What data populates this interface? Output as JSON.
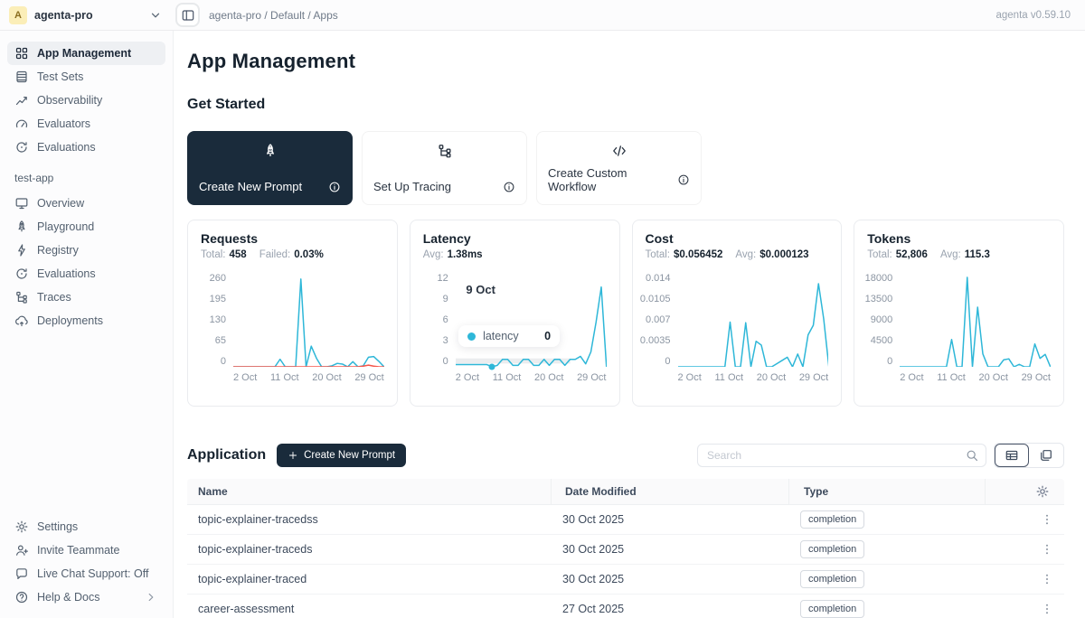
{
  "topbar": {
    "org": {
      "avatar_letter": "A",
      "name": "agenta-pro"
    },
    "breadcrumb": "agenta-pro / Default / Apps",
    "version": "agenta v0.59.10"
  },
  "sidebar": {
    "main_items": [
      {
        "label": "App Management",
        "icon": "grid-icon",
        "active": true
      },
      {
        "label": "Test Sets",
        "icon": "table-icon"
      },
      {
        "label": "Observability",
        "icon": "chart-icon"
      },
      {
        "label": "Evaluators",
        "icon": "gauge-icon"
      },
      {
        "label": "Evaluations",
        "icon": "refresh-icon"
      }
    ],
    "section_label": "test-app",
    "app_items": [
      {
        "label": "Overview",
        "icon": "monitor-icon"
      },
      {
        "label": "Playground",
        "icon": "rocket-icon"
      },
      {
        "label": "Registry",
        "icon": "lightning-icon"
      },
      {
        "label": "Evaluations",
        "icon": "refresh-icon"
      },
      {
        "label": "Traces",
        "icon": "trace-icon"
      },
      {
        "label": "Deployments",
        "icon": "cloud-icon"
      }
    ],
    "bottom_items": [
      {
        "label": "Settings",
        "icon": "gear-icon"
      },
      {
        "label": "Invite Teammate",
        "icon": "invite-icon"
      },
      {
        "label": "Live Chat Support: Off",
        "icon": "chat-icon"
      },
      {
        "label": "Help & Docs",
        "icon": "help-icon",
        "chevron": true
      }
    ]
  },
  "main": {
    "title": "App Management",
    "get_started": {
      "heading": "Get Started",
      "cards": [
        {
          "label": "Create New Prompt",
          "icon": "rocket-icon",
          "dark": true
        },
        {
          "label": "Set Up Tracing",
          "icon": "trace-icon"
        },
        {
          "label": "Create Custom Workflow",
          "icon": "code-icon"
        }
      ]
    },
    "application": {
      "heading": "Application",
      "create_button_label": "Create New Prompt",
      "search_placeholder": "Search",
      "table": {
        "columns": [
          "Name",
          "Date Modified",
          "Type"
        ],
        "rows": [
          {
            "name": "topic-explainer-tracedss",
            "date": "30 Oct 2025",
            "type": "completion"
          },
          {
            "name": "topic-explainer-traceds",
            "date": "30 Oct 2025",
            "type": "completion"
          },
          {
            "name": "topic-explainer-traced",
            "date": "30 Oct 2025",
            "type": "completion"
          },
          {
            "name": "career-assessment",
            "date": "27 Oct 2025",
            "type": "completion"
          }
        ]
      }
    }
  },
  "colors": {
    "accent_cyan": "#2eb7d8",
    "failed_red": "#f5554a",
    "dark_navy": "#1a2b3b"
  },
  "chart_data": [
    {
      "type": "line",
      "title": "Requests",
      "stats": [
        {
          "label": "Total:",
          "value": "458"
        },
        {
          "label": "Failed:",
          "value": "0.03%"
        }
      ],
      "yticks": [
        "260",
        "195",
        "130",
        "65",
        "0"
      ],
      "ylim": [
        0,
        273
      ],
      "xticks": [
        "2 Oct",
        "11 Oct",
        "20 Oct",
        "29 Oct"
      ],
      "x_days": "2 Oct to 31 Oct, daily",
      "series": [
        {
          "name": "requests",
          "color": "#2eb7d8",
          "values": [
            0,
            0,
            0,
            0,
            0,
            0,
            0,
            0,
            0,
            22,
            0,
            0,
            0,
            255,
            0,
            60,
            25,
            0,
            0,
            3,
            10,
            8,
            0,
            15,
            0,
            3,
            28,
            30,
            16,
            0
          ]
        },
        {
          "name": "failed",
          "color": "#f5554a",
          "values": [
            0,
            0,
            0,
            0,
            0,
            0,
            0,
            0,
            0,
            0,
            0,
            0,
            0,
            0,
            0,
            0,
            0,
            0,
            0,
            0,
            0,
            0,
            0,
            0,
            0,
            2,
            5,
            2,
            0,
            0
          ]
        }
      ]
    },
    {
      "type": "line",
      "title": "Latency",
      "stats": [
        {
          "label": "Avg:",
          "value": "1.38ms"
        }
      ],
      "yticks": [
        "12",
        "9",
        "6",
        "3",
        "0"
      ],
      "ylim": [
        0,
        12.6
      ],
      "xticks": [
        "2 Oct",
        "11 Oct",
        "20 Oct",
        "29 Oct"
      ],
      "x_days": "2 Oct to 31 Oct, daily",
      "band": true,
      "active_point": {
        "index": 7,
        "value": 0
      },
      "tooltip": {
        "date": "9 Oct",
        "series": "latency",
        "value": "0"
      },
      "series": [
        {
          "name": "latency",
          "color": "#2eb7d8",
          "values": [
            0.3,
            0.3,
            0.3,
            0.3,
            0.3,
            0.3,
            0.3,
            0,
            0.2,
            1,
            1,
            0.2,
            0.2,
            1,
            1,
            0.2,
            0.2,
            1,
            0.2,
            1,
            1,
            0.2,
            1,
            1,
            1.4,
            0.4,
            2,
            6,
            10.7,
            0
          ]
        }
      ]
    },
    {
      "type": "line",
      "title": "Cost",
      "stats": [
        {
          "label": "Total:",
          "value": "$0.056452"
        },
        {
          "label": "Avg:",
          "value": "$0.000123"
        }
      ],
      "yticks": [
        "0.014",
        "0.0105",
        "0.007",
        "0.0035",
        "0"
      ],
      "ylim": [
        0,
        0.0147
      ],
      "xticks": [
        "2 Oct",
        "11 Oct",
        "20 Oct",
        "29 Oct"
      ],
      "x_days": "2 Oct to 31 Oct, daily",
      "series": [
        {
          "name": "cost",
          "color": "#2eb7d8",
          "values": [
            0,
            0,
            0,
            0,
            0,
            0,
            0,
            0,
            0,
            0,
            0.007,
            0,
            0,
            0.0069,
            0,
            0.004,
            0.0034,
            0,
            0,
            0.0005,
            0.001,
            0.0015,
            0,
            0.002,
            0,
            0.005,
            0.0065,
            0.013,
            0.0075,
            0
          ]
        }
      ]
    },
    {
      "type": "line",
      "title": "Tokens",
      "stats": [
        {
          "label": "Total:",
          "value": "52,806"
        },
        {
          "label": "Avg:",
          "value": "115.3"
        }
      ],
      "yticks": [
        "18000",
        "13500",
        "9000",
        "4500",
        "0"
      ],
      "ylim": [
        0,
        18900
      ],
      "xticks": [
        "2 Oct",
        "11 Oct",
        "20 Oct",
        "29 Oct"
      ],
      "x_days": "2 Oct to 31 Oct, daily",
      "series": [
        {
          "name": "tokens",
          "color": "#2eb7d8",
          "values": [
            0,
            0,
            0,
            0,
            0,
            0,
            0,
            0,
            0,
            0,
            5500,
            0,
            0,
            18000,
            0,
            12000,
            2600,
            0,
            0,
            0,
            1400,
            1600,
            0,
            500,
            0,
            0,
            4600,
            1700,
            2500,
            0
          ]
        }
      ]
    }
  ]
}
